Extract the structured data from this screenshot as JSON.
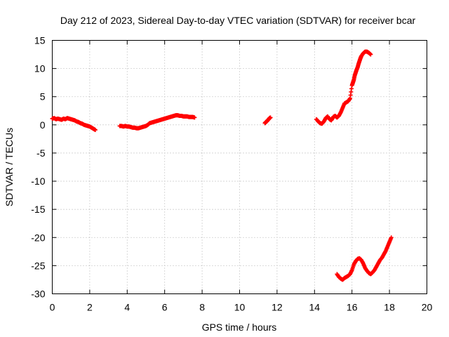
{
  "chart_data": {
    "type": "scatter",
    "title": "Day 212 of 2023, Sidereal Day-to-day VTEC variation (SDTVAR) for receiver bcar",
    "xlabel": "GPS time / hours",
    "ylabel": "SDTVAR / TECUs",
    "xlim": [
      0,
      20
    ],
    "ylim": [
      -30,
      15
    ],
    "xticks": [
      0,
      2,
      4,
      6,
      8,
      10,
      12,
      14,
      16,
      18,
      20
    ],
    "yticks": [
      15,
      10,
      5,
      0,
      -5,
      -10,
      -15,
      -20,
      -25,
      -30
    ],
    "xtick_labels": [
      "0",
      "2",
      "4",
      "6",
      "8",
      "10",
      "12",
      "14",
      "16",
      "18",
      "20"
    ],
    "ytick_labels": [
      "15",
      "10",
      "5",
      "0",
      "-5",
      "-10",
      "-15",
      "-20",
      "-25",
      "-30"
    ],
    "grid": true,
    "marker": "plus",
    "series": [
      {
        "name": "SDTVAR",
        "color": "#ff0000",
        "segments": [
          [
            [
              0.0,
              1.1
            ],
            [
              0.1,
              1.2
            ],
            [
              0.2,
              1.0
            ],
            [
              0.3,
              1.1
            ],
            [
              0.4,
              1.0
            ],
            [
              0.5,
              0.9
            ],
            [
              0.6,
              1.1
            ],
            [
              0.7,
              1.0
            ],
            [
              0.8,
              1.2
            ],
            [
              0.9,
              1.1
            ],
            [
              1.0,
              1.0
            ],
            [
              1.1,
              0.9
            ],
            [
              1.2,
              0.8
            ],
            [
              1.3,
              0.6
            ],
            [
              1.4,
              0.5
            ],
            [
              1.5,
              0.3
            ],
            [
              1.6,
              0.2
            ],
            [
              1.7,
              0.0
            ],
            [
              1.8,
              -0.1
            ],
            [
              1.9,
              -0.2
            ],
            [
              2.0,
              -0.3
            ],
            [
              2.1,
              -0.5
            ],
            [
              2.2,
              -0.7
            ],
            [
              2.3,
              -0.9
            ]
          ],
          [
            [
              3.6,
              -0.2
            ],
            [
              3.7,
              -0.2
            ],
            [
              3.8,
              -0.3
            ],
            [
              3.9,
              -0.2
            ],
            [
              4.0,
              -0.3
            ],
            [
              4.1,
              -0.3
            ],
            [
              4.2,
              -0.4
            ],
            [
              4.3,
              -0.5
            ],
            [
              4.4,
              -0.5
            ],
            [
              4.5,
              -0.6
            ],
            [
              4.6,
              -0.6
            ],
            [
              4.7,
              -0.5
            ],
            [
              4.8,
              -0.4
            ],
            [
              4.9,
              -0.3
            ],
            [
              5.0,
              -0.2
            ],
            [
              5.1,
              0.0
            ],
            [
              5.2,
              0.3
            ],
            [
              5.3,
              0.4
            ],
            [
              5.4,
              0.5
            ],
            [
              5.5,
              0.6
            ],
            [
              5.6,
              0.7
            ],
            [
              5.7,
              0.8
            ],
            [
              5.8,
              0.9
            ],
            [
              5.9,
              1.0
            ],
            [
              6.0,
              1.1
            ],
            [
              6.1,
              1.2
            ],
            [
              6.2,
              1.3
            ],
            [
              6.3,
              1.4
            ],
            [
              6.4,
              1.5
            ],
            [
              6.5,
              1.6
            ],
            [
              6.6,
              1.7
            ],
            [
              6.7,
              1.7
            ],
            [
              6.8,
              1.6
            ],
            [
              6.9,
              1.6
            ],
            [
              7.0,
              1.5
            ],
            [
              7.1,
              1.5
            ],
            [
              7.2,
              1.5
            ],
            [
              7.3,
              1.4
            ],
            [
              7.4,
              1.4
            ],
            [
              7.5,
              1.4
            ],
            [
              7.6,
              1.3
            ]
          ],
          [
            [
              11.35,
              0.3
            ],
            [
              11.4,
              0.5
            ],
            [
              11.45,
              0.6
            ],
            [
              11.5,
              0.8
            ],
            [
              11.55,
              1.0
            ],
            [
              11.6,
              1.2
            ],
            [
              11.65,
              1.3
            ]
          ],
          [
            [
              14.1,
              1.0
            ],
            [
              14.2,
              0.6
            ],
            [
              14.3,
              0.3
            ],
            [
              14.4,
              0.2
            ],
            [
              14.5,
              0.6
            ],
            [
              14.6,
              1.2
            ],
            [
              14.7,
              1.5
            ],
            [
              14.8,
              1.0
            ],
            [
              14.9,
              0.8
            ],
            [
              15.0,
              1.4
            ],
            [
              15.1,
              1.6
            ],
            [
              15.2,
              1.3
            ],
            [
              15.3,
              1.6
            ],
            [
              15.4,
              2.2
            ],
            [
              15.5,
              3.0
            ],
            [
              15.6,
              3.8
            ],
            [
              15.7,
              4.0
            ],
            [
              15.8,
              4.2
            ],
            [
              15.9,
              4.7
            ],
            [
              16.0,
              7.0
            ],
            [
              16.05,
              7.5
            ],
            [
              16.1,
              8.0
            ],
            [
              16.15,
              8.8
            ],
            [
              16.2,
              9.3
            ],
            [
              16.25,
              9.8
            ],
            [
              16.3,
              10.2
            ],
            [
              16.35,
              10.8
            ],
            [
              16.4,
              11.3
            ],
            [
              16.45,
              11.8
            ],
            [
              16.5,
              12.2
            ],
            [
              16.6,
              12.7
            ],
            [
              16.7,
              13.0
            ],
            [
              16.8,
              13.0
            ],
            [
              16.9,
              12.8
            ],
            [
              17.0,
              12.5
            ]
          ],
          [
            [
              15.2,
              -26.5
            ],
            [
              15.3,
              -27.0
            ],
            [
              15.4,
              -27.3
            ],
            [
              15.5,
              -27.5
            ],
            [
              15.6,
              -27.2
            ],
            [
              15.7,
              -27.0
            ],
            [
              15.8,
              -26.8
            ],
            [
              15.9,
              -26.5
            ],
            [
              16.0,
              -25.8
            ],
            [
              16.1,
              -24.8
            ],
            [
              16.2,
              -24.2
            ],
            [
              16.3,
              -23.8
            ],
            [
              16.4,
              -23.7
            ],
            [
              16.5,
              -24.0
            ],
            [
              16.6,
              -24.6
            ],
            [
              16.7,
              -25.4
            ],
            [
              16.8,
              -25.9
            ],
            [
              16.9,
              -26.3
            ],
            [
              17.0,
              -26.5
            ],
            [
              17.1,
              -26.2
            ],
            [
              17.2,
              -25.8
            ],
            [
              17.3,
              -25.2
            ],
            [
              17.4,
              -24.6
            ],
            [
              17.5,
              -24.0
            ],
            [
              17.6,
              -23.6
            ],
            [
              17.7,
              -23.0
            ],
            [
              17.8,
              -22.4
            ],
            [
              17.9,
              -21.6
            ],
            [
              18.0,
              -20.8
            ],
            [
              18.1,
              -20.0
            ]
          ]
        ]
      }
    ]
  }
}
